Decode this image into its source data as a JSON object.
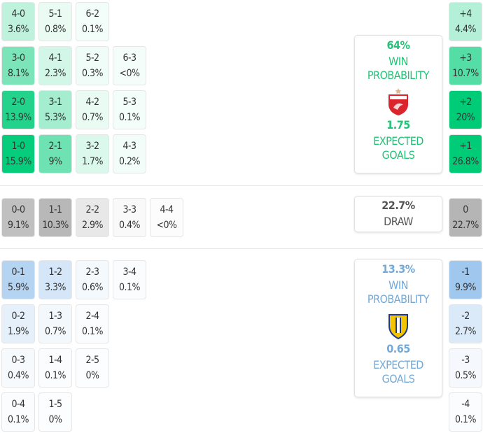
{
  "home_team": {
    "win_pct": "64%",
    "win_label_1": "WIN",
    "win_label_2": "PROBABILITY",
    "xg": "1.75",
    "xg_label_1": "EXPECTED",
    "xg_label_2": "GOALS",
    "crest": "dinamo-crest-icon",
    "color": "#21c476"
  },
  "draw": {
    "pct": "22.7%",
    "label": "DRAW"
  },
  "away_team": {
    "win_pct": "13.3%",
    "win_label_1": "WIN",
    "win_label_2": "PROBABILITY",
    "xg": "0.65",
    "xg_label_1": "EXPECTED",
    "xg_label_2": "GOALS",
    "crest": "petrolul-crest-icon",
    "color": "#72a9d8"
  },
  "home_rows": [
    [
      {
        "s": "4-0",
        "p": "3.6%"
      },
      {
        "s": "5-1",
        "p": "0.8%"
      },
      {
        "s": "6-2",
        "p": "0.1%"
      }
    ],
    [
      {
        "s": "3-0",
        "p": "8.1%"
      },
      {
        "s": "4-1",
        "p": "2.3%"
      },
      {
        "s": "5-2",
        "p": "0.3%"
      },
      {
        "s": "6-3",
        "p": "<0%"
      }
    ],
    [
      {
        "s": "2-0",
        "p": "13.9%"
      },
      {
        "s": "3-1",
        "p": "5.3%"
      },
      {
        "s": "4-2",
        "p": "0.7%"
      },
      {
        "s": "5-3",
        "p": "0.1%"
      }
    ],
    [
      {
        "s": "1-0",
        "p": "15.9%"
      },
      {
        "s": "2-1",
        "p": "9%"
      },
      {
        "s": "3-2",
        "p": "1.7%"
      },
      {
        "s": "4-3",
        "p": "0.2%"
      }
    ]
  ],
  "draw_row": [
    {
      "s": "0-0",
      "p": "9.1%"
    },
    {
      "s": "1-1",
      "p": "10.3%"
    },
    {
      "s": "2-2",
      "p": "2.9%"
    },
    {
      "s": "3-3",
      "p": "0.4%"
    },
    {
      "s": "4-4",
      "p": "<0%"
    }
  ],
  "away_rows": [
    [
      {
        "s": "0-1",
        "p": "5.9%"
      },
      {
        "s": "1-2",
        "p": "3.3%"
      },
      {
        "s": "2-3",
        "p": "0.6%"
      },
      {
        "s": "3-4",
        "p": "0.1%"
      }
    ],
    [
      {
        "s": "0-2",
        "p": "1.9%"
      },
      {
        "s": "1-3",
        "p": "0.7%"
      },
      {
        "s": "2-4",
        "p": "0.1%"
      }
    ],
    [
      {
        "s": "0-3",
        "p": "0.4%"
      },
      {
        "s": "1-4",
        "p": "0.1%"
      },
      {
        "s": "2-5",
        "p": "0%"
      }
    ],
    [
      {
        "s": "0-4",
        "p": "0.1%"
      },
      {
        "s": "1-5",
        "p": "0%"
      }
    ]
  ],
  "home_margins": [
    {
      "s": "+4",
      "p": "4.4%"
    },
    {
      "s": "+3",
      "p": "10.7%"
    },
    {
      "s": "+2",
      "p": "20%"
    },
    {
      "s": "+1",
      "p": "26.8%"
    }
  ],
  "draw_margin": {
    "s": "0",
    "p": "22.7%"
  },
  "away_margins": [
    {
      "s": "-1",
      "p": "9.9%"
    },
    {
      "s": "-2",
      "p": "2.7%"
    },
    {
      "s": "-3",
      "p": "0.5%"
    },
    {
      "s": "-4",
      "p": "0.1%"
    }
  ]
}
